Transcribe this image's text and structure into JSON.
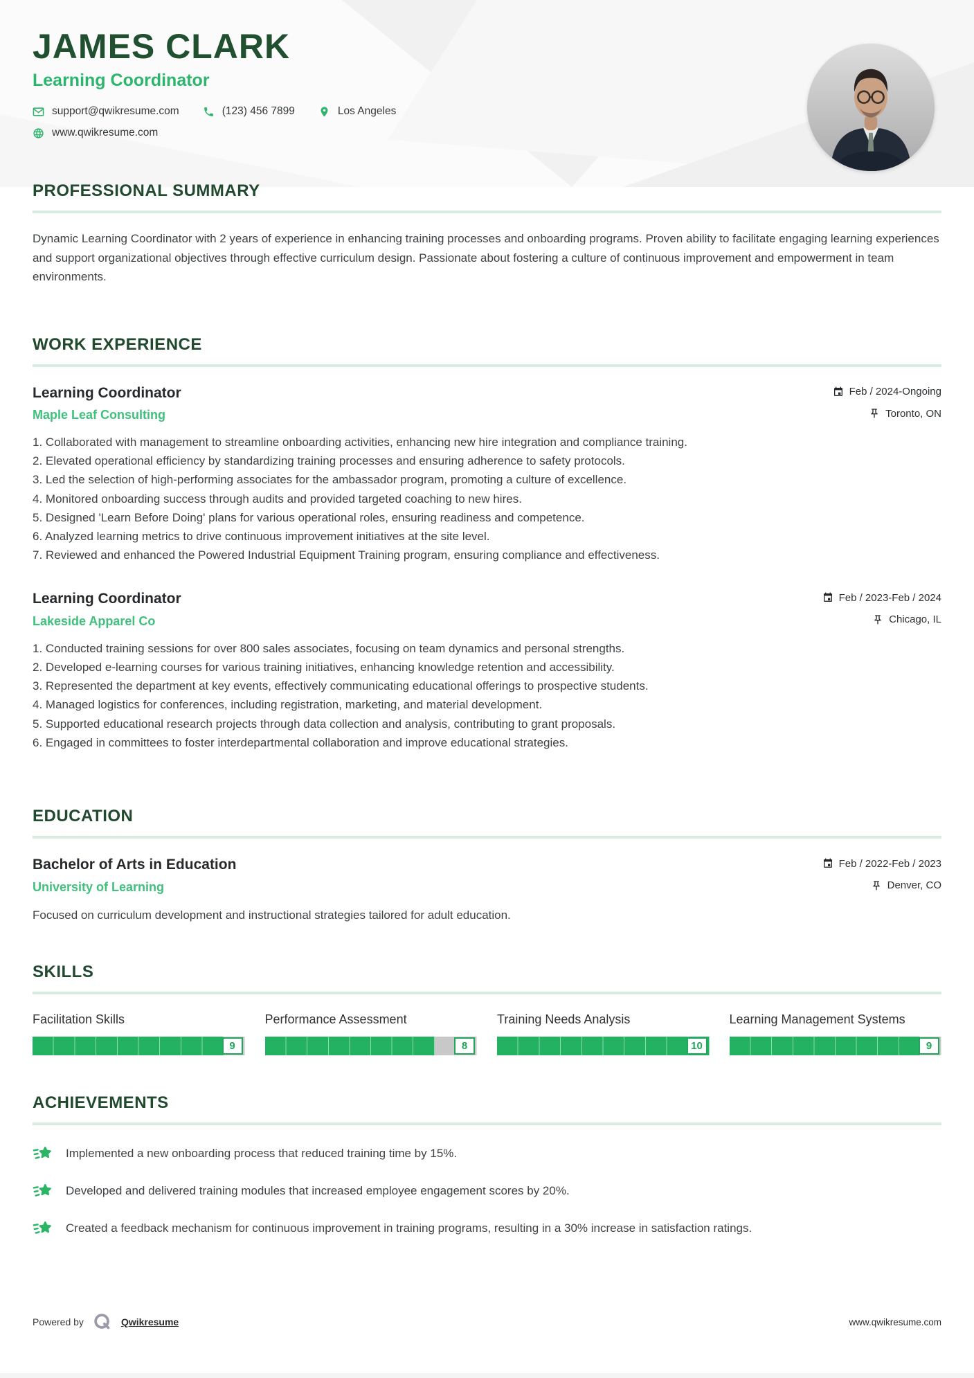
{
  "colors": {
    "heading_dark_green": "#21492e",
    "accent_green": "#2db56d",
    "company_green": "#3fc07c",
    "bar_green": "#22b262",
    "bar_gray": "#c7c8c7",
    "divider_mint": "#d8ebe0",
    "body_text": "#3f4245"
  },
  "icons": {
    "mail-icon": "envelope outline",
    "phone-icon": "handset",
    "location-pin-icon": "map pin",
    "globe-icon": "globe",
    "calendar-icon": "calendar grid",
    "pushpin-icon": "push pin",
    "achievement-star-icon": "shooting star",
    "qwikresume-logo": "gray Q ring"
  },
  "header": {
    "name": "JAMES CLARK",
    "title": "Learning Coordinator",
    "contact": {
      "email": "support@qwikresume.com",
      "phone": "(123) 456 7899",
      "location": "Los Angeles",
      "website": "www.qwikresume.com"
    }
  },
  "sections": {
    "summary": {
      "heading": "PROFESSIONAL SUMMARY",
      "text": "Dynamic Learning Coordinator with 2 years of experience in enhancing training processes and onboarding programs. Proven ability to facilitate engaging learning experiences and support organizational objectives through effective curriculum design. Passionate about fostering a culture of continuous improvement and empowerment in team environments."
    },
    "experience": {
      "heading": "WORK EXPERIENCE",
      "jobs": [
        {
          "title": "Learning Coordinator",
          "company": "Maple Leaf Consulting",
          "dates": "Feb / 2024-Ongoing",
          "location": "Toronto, ON",
          "bullets": [
            "Collaborated with management to streamline onboarding activities, enhancing new hire integration and compliance training.",
            "Elevated operational efficiency by standardizing training processes and ensuring adherence to safety protocols.",
            "Led the selection of high-performing associates for the ambassador program, promoting a culture of excellence.",
            "Monitored onboarding success through audits and provided targeted coaching to new hires.",
            "Designed 'Learn Before Doing' plans for various operational roles, ensuring readiness and competence.",
            "Analyzed learning metrics to drive continuous improvement initiatives at the site level.",
            "Reviewed and enhanced the Powered Industrial Equipment Training program, ensuring compliance and effectiveness."
          ]
        },
        {
          "title": "Learning Coordinator",
          "company": "Lakeside Apparel Co",
          "dates": "Feb / 2023-Feb / 2024",
          "location": "Chicago, IL",
          "bullets": [
            "Conducted training sessions for over 800 sales associates, focusing on team dynamics and personal strengths.",
            "Developed e-learning courses for various training initiatives, enhancing knowledge retention and accessibility.",
            "Represented the department at key events, effectively communicating educational offerings to prospective students.",
            "Managed logistics for conferences, including registration, marketing, and material development.",
            "Supported educational research projects through data collection and analysis, contributing to grant proposals.",
            "Engaged in committees to foster interdepartmental collaboration and improve educational strategies."
          ]
        }
      ]
    },
    "education": {
      "heading": "EDUCATION",
      "degree": "Bachelor of Arts in Education",
      "school": "University of Learning",
      "dates": "Feb / 2022-Feb / 2023",
      "location": "Denver, CO",
      "description": "Focused on curriculum development and instructional strategies tailored for adult education."
    },
    "skills": {
      "heading": "SKILLS",
      "items": [
        {
          "name": "Facilitation Skills",
          "score": 9,
          "max": 10
        },
        {
          "name": "Performance Assessment",
          "score": 8,
          "max": 10
        },
        {
          "name": "Training Needs Analysis",
          "score": 10,
          "max": 10
        },
        {
          "name": "Learning Management Systems",
          "score": 9,
          "max": 10
        }
      ]
    },
    "achievements": {
      "heading": "ACHIEVEMENTS",
      "items": [
        "Implemented a new onboarding process that reduced training time by 15%.",
        "Developed and delivered training modules that increased employee engagement scores by 20%.",
        "Created a feedback mechanism for continuous improvement in training programs, resulting in a 30% increase in satisfaction ratings."
      ]
    }
  },
  "footer": {
    "powered_by": "Powered by",
    "brand": "Qwikresume",
    "website": "www.qwikresume.com"
  }
}
